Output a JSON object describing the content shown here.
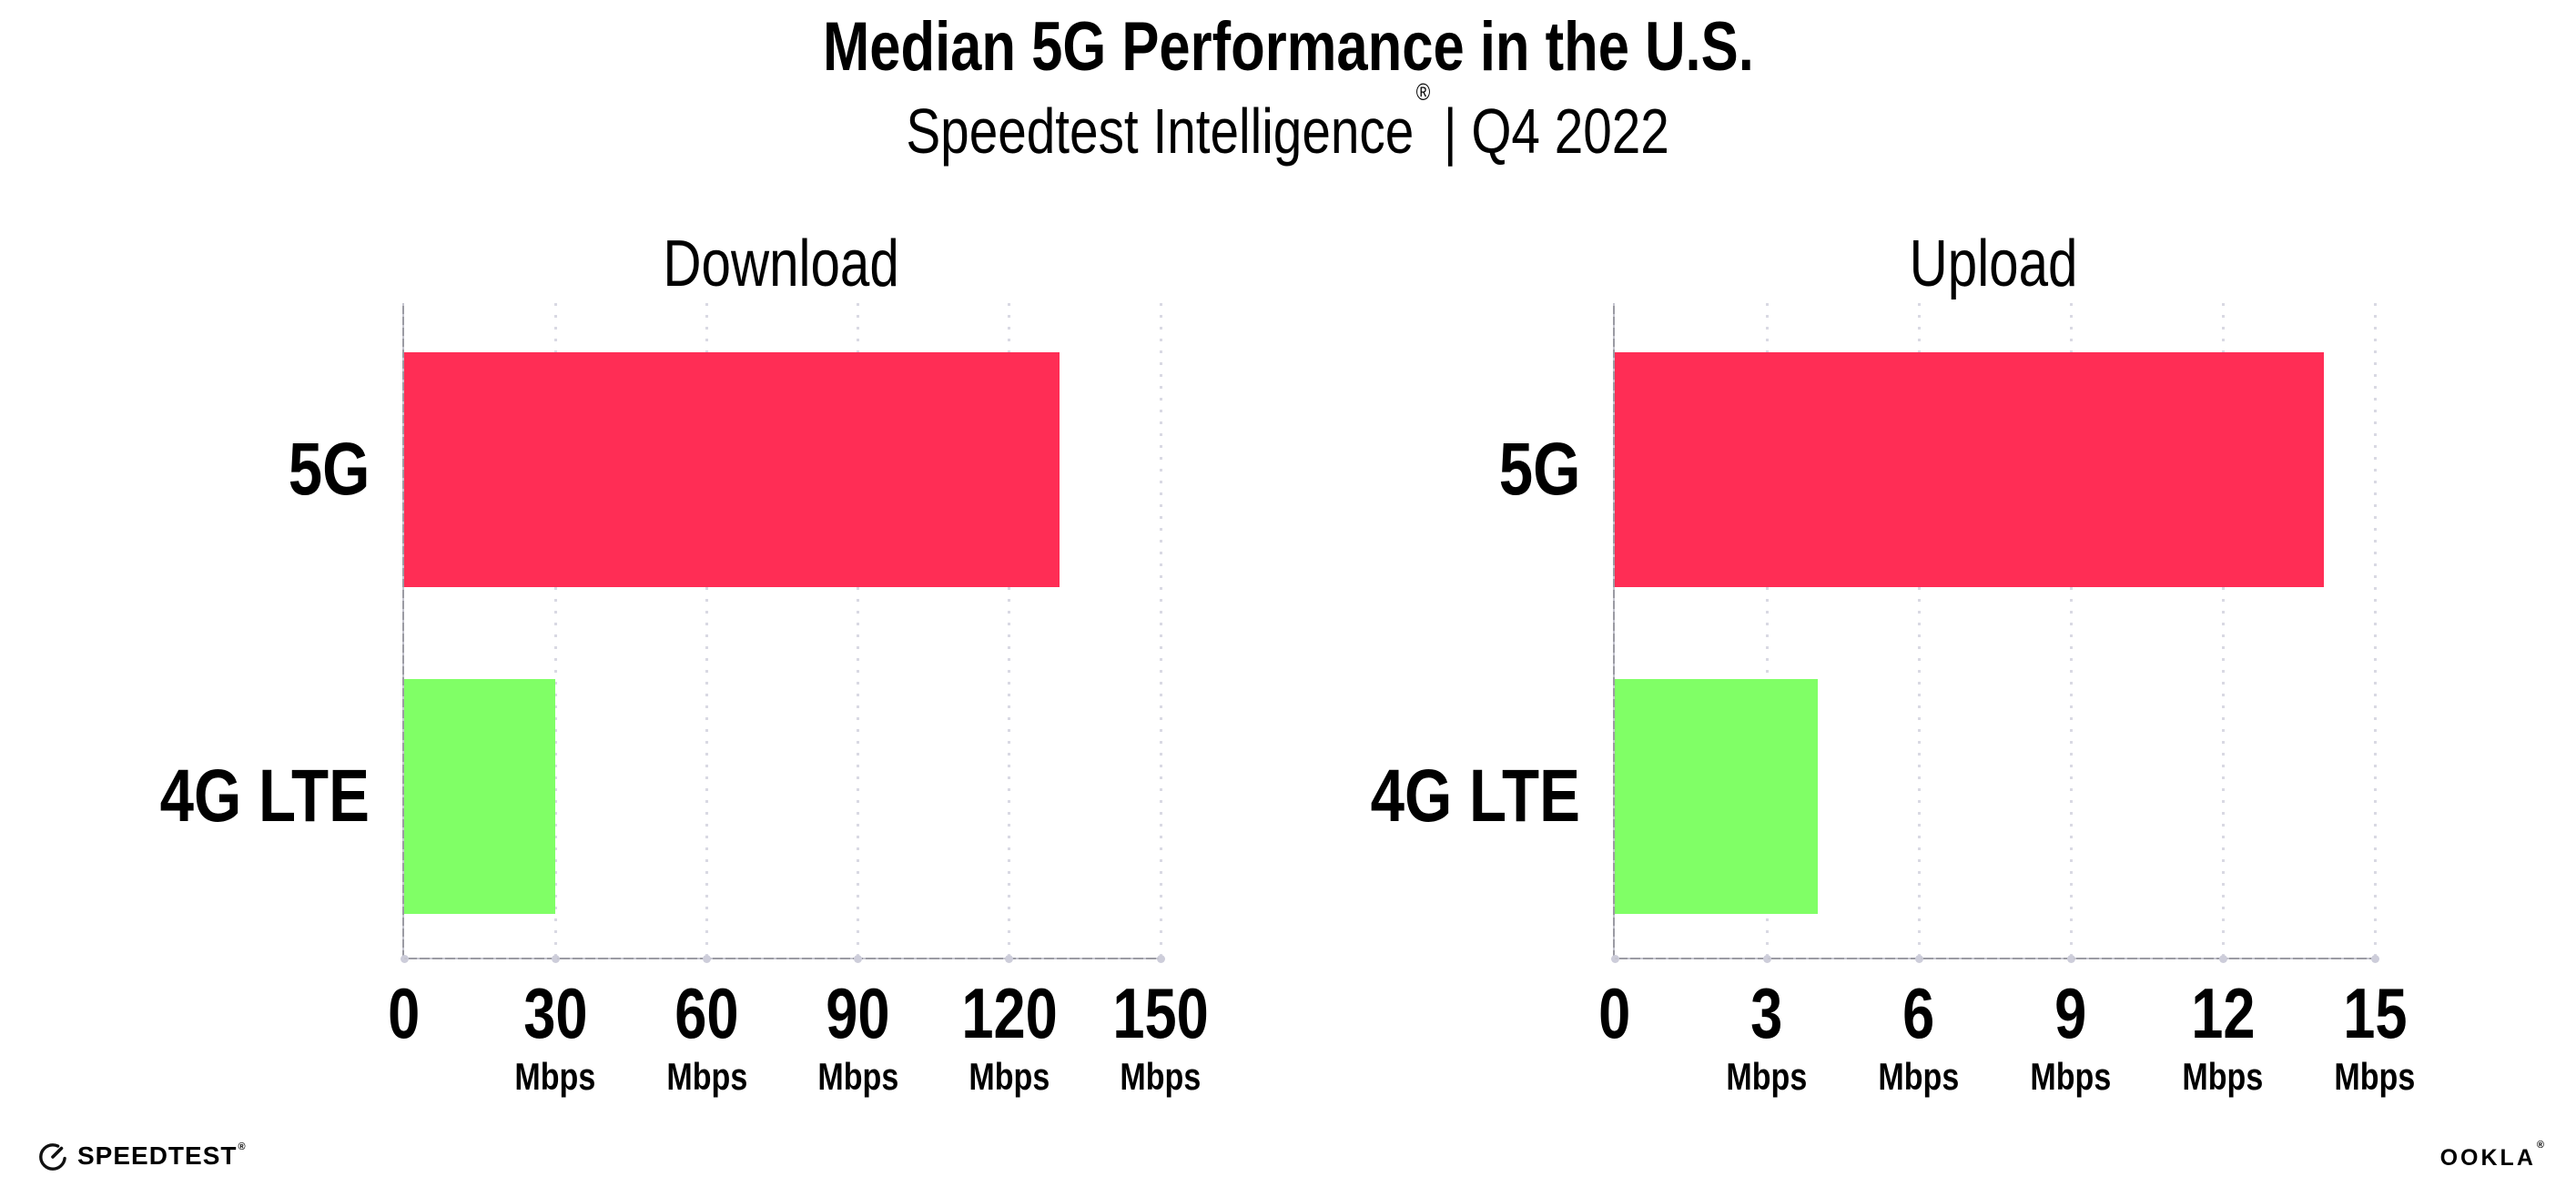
{
  "header": {
    "title": "Median 5G Performance in the U.S.",
    "subtitle": {
      "brand": "Speedtest Intelligence",
      "mark": "®",
      "rest": "| Q4 2022"
    }
  },
  "chart_data": [
    {
      "type": "bar",
      "orientation": "horizontal",
      "title": "Download",
      "categories": [
        "5G",
        "4G LTE"
      ],
      "values": [
        130,
        30
      ],
      "unit": "Mbps",
      "xlim": [
        0,
        150
      ],
      "xticks": [
        0,
        30,
        60,
        90,
        120,
        150
      ],
      "tick_unit": "Mbps",
      "bar_colors": [
        "#ff2d55",
        "#80ff66"
      ],
      "grid": "dotted vertical gridlines at each tick",
      "legend": "none"
    },
    {
      "type": "bar",
      "orientation": "horizontal",
      "title": "Upload",
      "categories": [
        "5G",
        "4G LTE"
      ],
      "values": [
        14,
        4
      ],
      "unit": "Mbps",
      "xlim": [
        0,
        15
      ],
      "xticks": [
        0,
        3,
        6,
        9,
        12,
        15
      ],
      "tick_unit": "Mbps",
      "bar_colors": [
        "#ff2d55",
        "#80ff66"
      ],
      "grid": "dotted vertical gridlines at each tick",
      "legend": "none"
    }
  ],
  "footer": {
    "speedtest": {
      "label": "SPEEDTEST",
      "mark": "®"
    },
    "ookla": {
      "label": "OOKLA",
      "mark": "®"
    }
  },
  "colors": {
    "bar_5g": "#ff2d55",
    "bar_4g_lte": "#80ff66",
    "axis": "#9b9ba3",
    "gridline": "#d9d9e3",
    "text": "#000000",
    "background": "#ffffff"
  }
}
